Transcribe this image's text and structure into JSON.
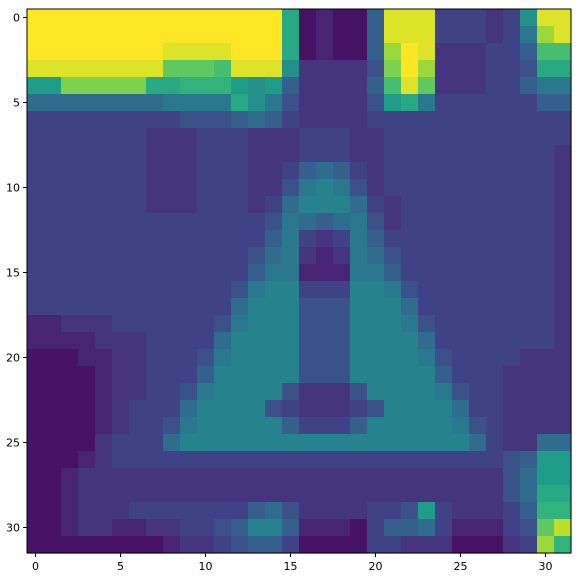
{
  "chart_data": {
    "type": "heatmap",
    "title": "",
    "xlabel": "",
    "ylabel": "",
    "colormap": "viridis",
    "colormap_stops": [
      "#440154",
      "#482878",
      "#3e4989",
      "#31688e",
      "#26828e",
      "#1f9e89",
      "#35b779",
      "#6ece58",
      "#b5de2b",
      "#fde725"
    ],
    "value_range": [
      0,
      1
    ],
    "rows": 32,
    "cols": 32,
    "x_ticks": [
      0,
      5,
      10,
      15,
      20,
      25,
      30
    ],
    "y_ticks": [
      0,
      5,
      10,
      15,
      20,
      25,
      30
    ],
    "x_tick_labels": [
      "0",
      "5",
      "10",
      "15",
      "20",
      "25",
      "30"
    ],
    "y_tick_labels": [
      "0",
      "5",
      "10",
      "15",
      "20",
      "25",
      "30"
    ],
    "grid": false,
    "legend": "none",
    "values": [
      [
        1.0,
        1.0,
        1.0,
        1.0,
        1.0,
        1.0,
        1.0,
        1.0,
        1.0,
        1.0,
        1.0,
        1.0,
        1.0,
        1.0,
        1.0,
        0.6,
        0.05,
        0.1,
        0.05,
        0.05,
        0.3,
        0.95,
        0.95,
        0.95,
        0.2,
        0.2,
        0.2,
        0.15,
        0.2,
        0.5,
        0.95,
        0.95
      ],
      [
        1.0,
        1.0,
        1.0,
        1.0,
        1.0,
        1.0,
        1.0,
        1.0,
        1.0,
        1.0,
        1.0,
        1.0,
        1.0,
        1.0,
        1.0,
        0.6,
        0.05,
        0.1,
        0.05,
        0.05,
        0.3,
        0.95,
        0.95,
        0.95,
        0.2,
        0.2,
        0.2,
        0.15,
        0.2,
        0.4,
        0.85,
        0.95
      ],
      [
        1.0,
        1.0,
        1.0,
        1.0,
        1.0,
        1.0,
        1.0,
        1.0,
        0.95,
        0.95,
        0.95,
        0.95,
        1.0,
        1.0,
        1.0,
        0.6,
        0.05,
        0.1,
        0.05,
        0.05,
        0.3,
        0.85,
        1.0,
        0.95,
        0.15,
        0.15,
        0.15,
        0.2,
        0.2,
        0.3,
        0.7,
        0.7
      ],
      [
        0.95,
        0.95,
        0.95,
        0.95,
        0.95,
        0.95,
        0.95,
        0.95,
        0.75,
        0.75,
        0.75,
        0.7,
        0.95,
        0.95,
        0.95,
        0.5,
        0.15,
        0.15,
        0.15,
        0.15,
        0.25,
        0.8,
        1.0,
        0.85,
        0.15,
        0.15,
        0.15,
        0.2,
        0.2,
        0.25,
        0.6,
        0.6
      ],
      [
        0.55,
        0.55,
        0.8,
        0.8,
        0.8,
        0.8,
        0.8,
        0.6,
        0.6,
        0.65,
        0.65,
        0.65,
        0.55,
        0.5,
        0.55,
        0.3,
        0.15,
        0.15,
        0.15,
        0.15,
        0.3,
        0.7,
        0.95,
        0.75,
        0.15,
        0.15,
        0.15,
        0.2,
        0.2,
        0.3,
        0.4,
        0.4
      ],
      [
        0.35,
        0.35,
        0.35,
        0.35,
        0.35,
        0.35,
        0.35,
        0.35,
        0.4,
        0.4,
        0.4,
        0.4,
        0.6,
        0.5,
        0.4,
        0.25,
        0.15,
        0.15,
        0.15,
        0.15,
        0.25,
        0.55,
        0.6,
        0.4,
        0.2,
        0.2,
        0.2,
        0.2,
        0.2,
        0.2,
        0.3,
        0.3
      ],
      [
        0.2,
        0.2,
        0.2,
        0.2,
        0.2,
        0.2,
        0.2,
        0.2,
        0.2,
        0.25,
        0.25,
        0.25,
        0.3,
        0.35,
        0.3,
        0.2,
        0.15,
        0.15,
        0.15,
        0.15,
        0.2,
        0.2,
        0.2,
        0.2,
        0.2,
        0.2,
        0.2,
        0.2,
        0.2,
        0.2,
        0.2,
        0.2
      ],
      [
        0.2,
        0.2,
        0.2,
        0.2,
        0.2,
        0.2,
        0.2,
        0.15,
        0.15,
        0.15,
        0.2,
        0.2,
        0.2,
        0.15,
        0.15,
        0.15,
        0.2,
        0.2,
        0.2,
        0.15,
        0.15,
        0.2,
        0.2,
        0.2,
        0.2,
        0.2,
        0.2,
        0.2,
        0.2,
        0.2,
        0.2,
        0.2
      ],
      [
        0.2,
        0.2,
        0.2,
        0.2,
        0.2,
        0.2,
        0.2,
        0.15,
        0.15,
        0.15,
        0.2,
        0.2,
        0.2,
        0.15,
        0.15,
        0.15,
        0.2,
        0.2,
        0.2,
        0.15,
        0.15,
        0.2,
        0.2,
        0.2,
        0.2,
        0.2,
        0.2,
        0.2,
        0.2,
        0.2,
        0.2,
        0.15
      ],
      [
        0.2,
        0.2,
        0.2,
        0.2,
        0.2,
        0.2,
        0.2,
        0.15,
        0.15,
        0.15,
        0.2,
        0.2,
        0.2,
        0.15,
        0.15,
        0.2,
        0.3,
        0.35,
        0.3,
        0.2,
        0.15,
        0.2,
        0.2,
        0.2,
        0.2,
        0.2,
        0.2,
        0.2,
        0.2,
        0.2,
        0.2,
        0.15
      ],
      [
        0.2,
        0.2,
        0.2,
        0.2,
        0.2,
        0.2,
        0.2,
        0.15,
        0.15,
        0.15,
        0.2,
        0.2,
        0.2,
        0.15,
        0.15,
        0.25,
        0.4,
        0.45,
        0.4,
        0.25,
        0.15,
        0.2,
        0.2,
        0.2,
        0.2,
        0.2,
        0.2,
        0.2,
        0.2,
        0.2,
        0.2,
        0.15
      ],
      [
        0.2,
        0.2,
        0.2,
        0.2,
        0.2,
        0.2,
        0.2,
        0.15,
        0.15,
        0.15,
        0.2,
        0.2,
        0.2,
        0.15,
        0.2,
        0.35,
        0.45,
        0.45,
        0.45,
        0.35,
        0.2,
        0.15,
        0.2,
        0.2,
        0.2,
        0.2,
        0.2,
        0.2,
        0.2,
        0.2,
        0.2,
        0.15
      ],
      [
        0.2,
        0.2,
        0.2,
        0.2,
        0.2,
        0.2,
        0.2,
        0.2,
        0.2,
        0.2,
        0.2,
        0.2,
        0.2,
        0.2,
        0.25,
        0.4,
        0.35,
        0.3,
        0.35,
        0.4,
        0.25,
        0.15,
        0.2,
        0.2,
        0.2,
        0.2,
        0.2,
        0.2,
        0.2,
        0.2,
        0.2,
        0.15
      ],
      [
        0.2,
        0.2,
        0.2,
        0.2,
        0.2,
        0.2,
        0.2,
        0.2,
        0.2,
        0.2,
        0.2,
        0.2,
        0.2,
        0.2,
        0.3,
        0.4,
        0.2,
        0.15,
        0.2,
        0.4,
        0.3,
        0.2,
        0.2,
        0.2,
        0.2,
        0.2,
        0.2,
        0.2,
        0.2,
        0.2,
        0.2,
        0.15
      ],
      [
        0.2,
        0.2,
        0.2,
        0.2,
        0.2,
        0.2,
        0.2,
        0.2,
        0.2,
        0.2,
        0.2,
        0.2,
        0.2,
        0.25,
        0.35,
        0.4,
        0.15,
        0.1,
        0.15,
        0.4,
        0.35,
        0.25,
        0.2,
        0.2,
        0.2,
        0.2,
        0.2,
        0.2,
        0.2,
        0.2,
        0.2,
        0.15
      ],
      [
        0.2,
        0.2,
        0.2,
        0.2,
        0.2,
        0.2,
        0.2,
        0.2,
        0.2,
        0.2,
        0.2,
        0.2,
        0.2,
        0.3,
        0.4,
        0.4,
        0.1,
        0.1,
        0.1,
        0.4,
        0.4,
        0.3,
        0.2,
        0.2,
        0.2,
        0.2,
        0.2,
        0.2,
        0.2,
        0.2,
        0.2,
        0.15
      ],
      [
        0.2,
        0.2,
        0.2,
        0.2,
        0.2,
        0.2,
        0.2,
        0.2,
        0.2,
        0.2,
        0.2,
        0.2,
        0.25,
        0.4,
        0.45,
        0.45,
        0.2,
        0.2,
        0.2,
        0.45,
        0.45,
        0.4,
        0.25,
        0.2,
        0.2,
        0.2,
        0.2,
        0.2,
        0.2,
        0.2,
        0.2,
        0.15
      ],
      [
        0.2,
        0.2,
        0.2,
        0.2,
        0.2,
        0.2,
        0.2,
        0.2,
        0.2,
        0.2,
        0.2,
        0.2,
        0.35,
        0.45,
        0.45,
        0.45,
        0.25,
        0.25,
        0.25,
        0.45,
        0.45,
        0.45,
        0.35,
        0.2,
        0.2,
        0.2,
        0.2,
        0.2,
        0.2,
        0.2,
        0.2,
        0.15
      ],
      [
        0.1,
        0.1,
        0.15,
        0.15,
        0.15,
        0.2,
        0.2,
        0.2,
        0.2,
        0.2,
        0.2,
        0.25,
        0.4,
        0.45,
        0.45,
        0.45,
        0.25,
        0.25,
        0.25,
        0.45,
        0.45,
        0.45,
        0.4,
        0.25,
        0.2,
        0.2,
        0.2,
        0.2,
        0.2,
        0.2,
        0.2,
        0.15
      ],
      [
        0.1,
        0.1,
        0.1,
        0.1,
        0.15,
        0.15,
        0.15,
        0.2,
        0.2,
        0.2,
        0.2,
        0.35,
        0.45,
        0.45,
        0.45,
        0.45,
        0.25,
        0.25,
        0.25,
        0.45,
        0.45,
        0.45,
        0.45,
        0.35,
        0.2,
        0.2,
        0.2,
        0.2,
        0.2,
        0.2,
        0.2,
        0.15
      ],
      [
        0.05,
        0.05,
        0.05,
        0.1,
        0.1,
        0.15,
        0.15,
        0.2,
        0.2,
        0.2,
        0.25,
        0.4,
        0.45,
        0.45,
        0.45,
        0.45,
        0.25,
        0.25,
        0.25,
        0.45,
        0.45,
        0.45,
        0.45,
        0.4,
        0.25,
        0.2,
        0.2,
        0.2,
        0.2,
        0.15,
        0.15,
        0.15
      ],
      [
        0.05,
        0.05,
        0.05,
        0.05,
        0.1,
        0.15,
        0.15,
        0.2,
        0.2,
        0.2,
        0.3,
        0.45,
        0.45,
        0.45,
        0.45,
        0.45,
        0.25,
        0.25,
        0.25,
        0.45,
        0.45,
        0.45,
        0.45,
        0.45,
        0.3,
        0.2,
        0.2,
        0.2,
        0.15,
        0.15,
        0.15,
        0.15
      ],
      [
        0.05,
        0.05,
        0.05,
        0.05,
        0.1,
        0.15,
        0.15,
        0.2,
        0.2,
        0.25,
        0.4,
        0.45,
        0.45,
        0.45,
        0.45,
        0.25,
        0.15,
        0.15,
        0.15,
        0.25,
        0.45,
        0.45,
        0.45,
        0.45,
        0.4,
        0.25,
        0.2,
        0.2,
        0.15,
        0.15,
        0.15,
        0.15
      ],
      [
        0.05,
        0.05,
        0.05,
        0.05,
        0.1,
        0.15,
        0.2,
        0.2,
        0.2,
        0.35,
        0.45,
        0.45,
        0.45,
        0.45,
        0.25,
        0.2,
        0.15,
        0.15,
        0.15,
        0.2,
        0.25,
        0.45,
        0.45,
        0.45,
        0.45,
        0.35,
        0.2,
        0.2,
        0.15,
        0.15,
        0.15,
        0.15
      ],
      [
        0.05,
        0.05,
        0.05,
        0.05,
        0.1,
        0.15,
        0.2,
        0.2,
        0.25,
        0.4,
        0.45,
        0.45,
        0.45,
        0.45,
        0.45,
        0.3,
        0.2,
        0.2,
        0.2,
        0.3,
        0.45,
        0.45,
        0.45,
        0.45,
        0.45,
        0.4,
        0.25,
        0.2,
        0.15,
        0.15,
        0.15,
        0.15
      ],
      [
        0.05,
        0.05,
        0.05,
        0.05,
        0.15,
        0.2,
        0.2,
        0.2,
        0.35,
        0.45,
        0.45,
        0.45,
        0.45,
        0.45,
        0.45,
        0.45,
        0.45,
        0.45,
        0.45,
        0.45,
        0.45,
        0.45,
        0.45,
        0.45,
        0.45,
        0.45,
        0.35,
        0.2,
        0.15,
        0.15,
        0.35,
        0.35
      ],
      [
        0.05,
        0.05,
        0.05,
        0.1,
        0.15,
        0.2,
        0.2,
        0.2,
        0.2,
        0.2,
        0.2,
        0.2,
        0.2,
        0.2,
        0.2,
        0.2,
        0.2,
        0.2,
        0.2,
        0.2,
        0.2,
        0.2,
        0.2,
        0.2,
        0.2,
        0.2,
        0.2,
        0.2,
        0.25,
        0.3,
        0.55,
        0.55
      ],
      [
        0.05,
        0.05,
        0.1,
        0.15,
        0.15,
        0.15,
        0.15,
        0.15,
        0.15,
        0.15,
        0.15,
        0.15,
        0.15,
        0.15,
        0.15,
        0.15,
        0.15,
        0.15,
        0.15,
        0.15,
        0.15,
        0.15,
        0.15,
        0.15,
        0.15,
        0.15,
        0.15,
        0.15,
        0.25,
        0.35,
        0.55,
        0.55
      ],
      [
        0.05,
        0.05,
        0.1,
        0.15,
        0.15,
        0.15,
        0.15,
        0.15,
        0.15,
        0.15,
        0.15,
        0.15,
        0.15,
        0.15,
        0.15,
        0.15,
        0.15,
        0.15,
        0.15,
        0.15,
        0.15,
        0.15,
        0.15,
        0.15,
        0.15,
        0.15,
        0.15,
        0.15,
        0.25,
        0.35,
        0.6,
        0.6
      ],
      [
        0.05,
        0.05,
        0.1,
        0.15,
        0.15,
        0.15,
        0.2,
        0.2,
        0.2,
        0.2,
        0.2,
        0.2,
        0.2,
        0.3,
        0.35,
        0.25,
        0.15,
        0.15,
        0.15,
        0.15,
        0.2,
        0.2,
        0.25,
        0.55,
        0.2,
        0.15,
        0.15,
        0.15,
        0.2,
        0.3,
        0.65,
        0.65
      ],
      [
        0.05,
        0.05,
        0.1,
        0.15,
        0.15,
        0.1,
        0.1,
        0.15,
        0.15,
        0.2,
        0.2,
        0.25,
        0.3,
        0.45,
        0.45,
        0.3,
        0.1,
        0.1,
        0.1,
        0.05,
        0.2,
        0.3,
        0.3,
        0.35,
        0.2,
        0.1,
        0.1,
        0.1,
        0.2,
        0.25,
        0.75,
        0.9
      ],
      [
        0.05,
        0.05,
        0.05,
        0.05,
        0.05,
        0.05,
        0.05,
        0.05,
        0.1,
        0.15,
        0.15,
        0.2,
        0.25,
        0.3,
        0.3,
        0.2,
        0.05,
        0.05,
        0.05,
        0.05,
        0.2,
        0.2,
        0.15,
        0.15,
        0.15,
        0.05,
        0.05,
        0.05,
        0.15,
        0.2,
        0.85,
        0.65
      ]
    ]
  }
}
